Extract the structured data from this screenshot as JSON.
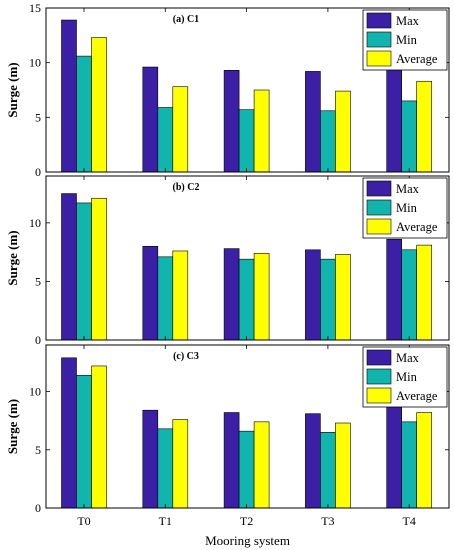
{
  "chart_data": [
    {
      "type": "bar",
      "title": "(a) C1",
      "xlabel": "",
      "ylabel": "Surge (m)",
      "ylim": [
        0,
        15
      ],
      "yticks": [
        0,
        5,
        10,
        15
      ],
      "categories": [
        "T0",
        "T1",
        "T2",
        "T3",
        "T4"
      ],
      "show_xticklabels": false,
      "legend": "top-right",
      "series": [
        {
          "name": "Max",
          "color": "#3b1fa5",
          "values": [
            13.9,
            9.6,
            9.3,
            9.2,
            10.2
          ]
        },
        {
          "name": "Min",
          "color": "#12b5ae",
          "values": [
            10.6,
            5.9,
            5.7,
            5.6,
            6.5
          ]
        },
        {
          "name": "Average",
          "color": "#ffff00",
          "values": [
            12.3,
            7.8,
            7.5,
            7.4,
            8.3
          ]
        }
      ]
    },
    {
      "type": "bar",
      "title": "(b) C2",
      "xlabel": "",
      "ylabel": "Surge (m)",
      "ylim": [
        0,
        14
      ],
      "yticks": [
        0,
        5,
        10
      ],
      "categories": [
        "T0",
        "T1",
        "T2",
        "T3",
        "T4"
      ],
      "show_xticklabels": false,
      "legend": "top-right",
      "series": [
        {
          "name": "Max",
          "color": "#3b1fa5",
          "values": [
            12.5,
            8.0,
            7.8,
            7.7,
            8.6
          ]
        },
        {
          "name": "Min",
          "color": "#12b5ae",
          "values": [
            11.7,
            7.1,
            6.9,
            6.9,
            7.7
          ]
        },
        {
          "name": "Average",
          "color": "#ffff00",
          "values": [
            12.1,
            7.6,
            7.4,
            7.3,
            8.1
          ]
        }
      ]
    },
    {
      "type": "bar",
      "title": "(c) C3",
      "xlabel": "Mooring system",
      "ylabel": "Surge (m)",
      "ylim": [
        0,
        14
      ],
      "yticks": [
        0,
        5,
        10
      ],
      "categories": [
        "T0",
        "T1",
        "T2",
        "T3",
        "T4"
      ],
      "show_xticklabels": true,
      "legend": "top-right",
      "series": [
        {
          "name": "Max",
          "color": "#3b1fa5",
          "values": [
            12.9,
            8.4,
            8.2,
            8.1,
            9.0
          ]
        },
        {
          "name": "Min",
          "color": "#12b5ae",
          "values": [
            11.4,
            6.8,
            6.6,
            6.5,
            7.4
          ]
        },
        {
          "name": "Average",
          "color": "#ffff00",
          "values": [
            12.2,
            7.6,
            7.4,
            7.3,
            8.2
          ]
        }
      ]
    }
  ]
}
